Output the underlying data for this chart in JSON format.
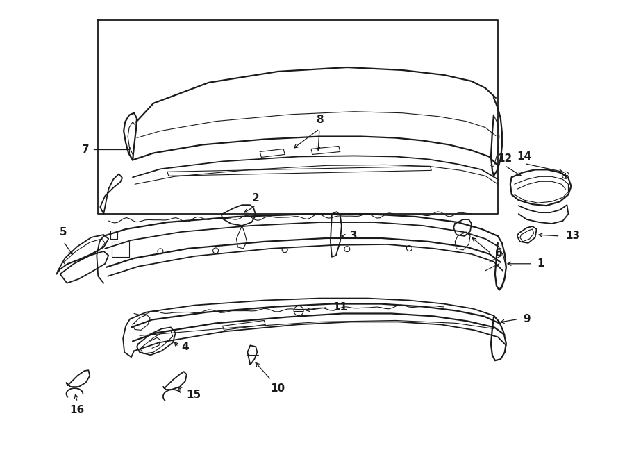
{
  "bg_color": "#ffffff",
  "line_color": "#1a1a1a",
  "fig_width": 9.0,
  "fig_height": 6.61,
  "dpi": 100,
  "lw": 1.3,
  "lw_thin": 0.8,
  "lw_thick": 1.6
}
